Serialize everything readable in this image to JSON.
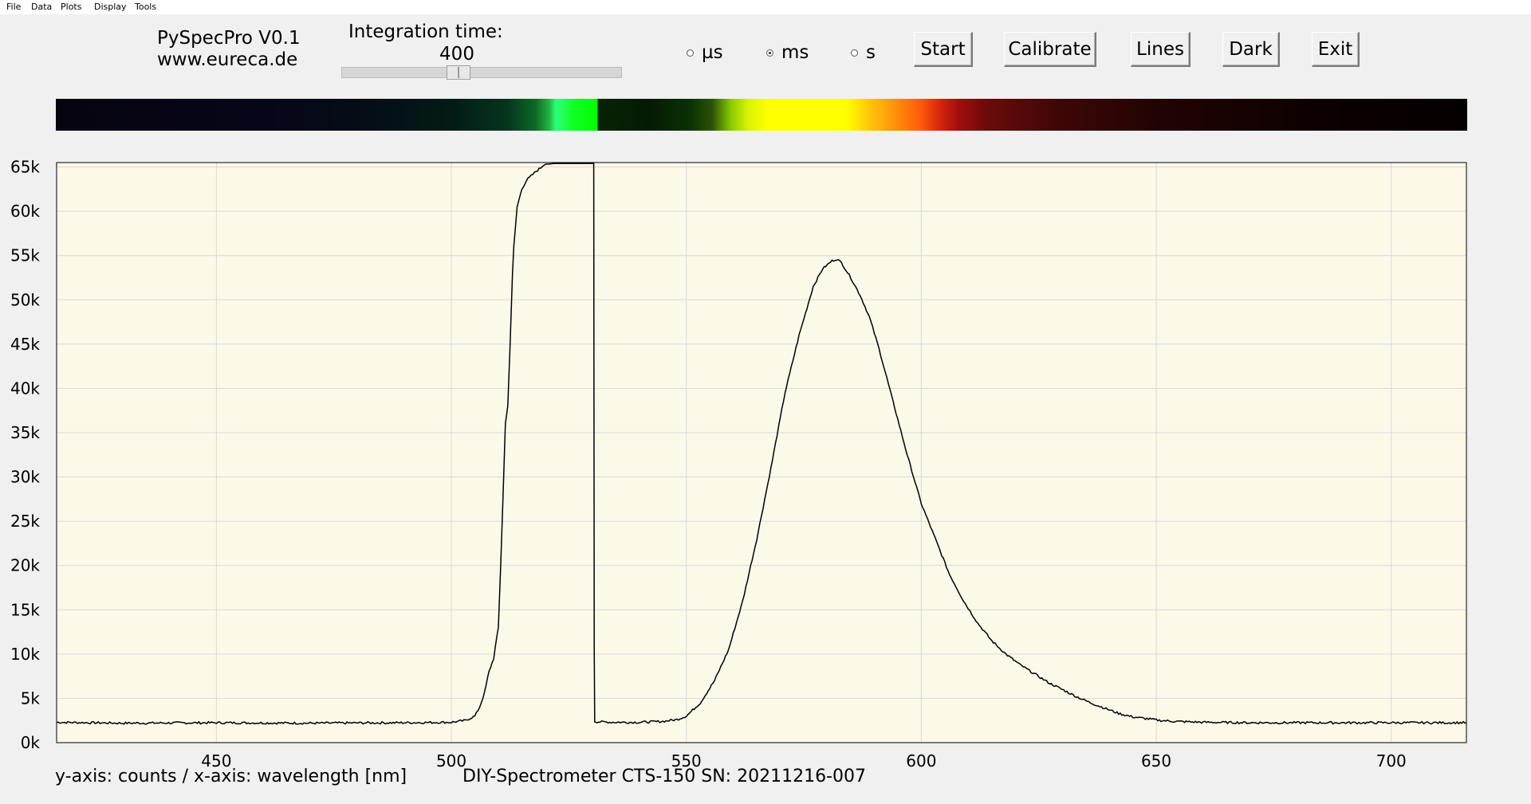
{
  "menu": {
    "items": [
      {
        "label": "File"
      },
      {
        "label": "Data"
      },
      {
        "label": "Plots"
      },
      {
        "label": "Display"
      },
      {
        "label": "Tools"
      }
    ]
  },
  "header": {
    "title": "PySpecPro V0.1",
    "url": "www.eureca.de",
    "integration_label": "Integration time:",
    "integration_value": "400",
    "integration_slider_level": 0.41
  },
  "units": {
    "options": [
      {
        "label": "µs",
        "selected": false
      },
      {
        "label": "ms",
        "selected": true
      },
      {
        "label": "s",
        "selected": false
      }
    ]
  },
  "buttons": {
    "start": "Start",
    "calibrate": "Calibrate",
    "lines": "Lines",
    "dark": "Dark",
    "exit": "Exit"
  },
  "footer": {
    "axes_text": "y-axis: counts / x-axis: wavelength [nm]",
    "device_text": "DIY-Spectrometer CTS-150  SN: 20211216-007"
  },
  "colors": {
    "plot_background": "#fdf9e9",
    "grid": "#d8d8d8",
    "trace": "#000000"
  },
  "chart_data": {
    "type": "line",
    "xlabel": "wavelength [nm]",
    "ylabel": "counts",
    "xlim": [
      416,
      716
    ],
    "ylim": [
      0,
      65500
    ],
    "x_ticks": [
      450,
      500,
      550,
      600,
      650,
      700
    ],
    "y_ticks": [
      {
        "value": 0,
        "label": "0k"
      },
      {
        "value": 5000,
        "label": "5k"
      },
      {
        "value": 10000,
        "label": "10k"
      },
      {
        "value": 15000,
        "label": "15k"
      },
      {
        "value": 20000,
        "label": "20k"
      },
      {
        "value": 25000,
        "label": "25k"
      },
      {
        "value": 30000,
        "label": "30k"
      },
      {
        "value": 35000,
        "label": "35k"
      },
      {
        "value": 40000,
        "label": "40k"
      },
      {
        "value": 45000,
        "label": "45k"
      },
      {
        "value": 50000,
        "label": "50k"
      },
      {
        "value": 55000,
        "label": "55k"
      },
      {
        "value": 60000,
        "label": "60k"
      },
      {
        "value": 65000,
        "label": "65k"
      }
    ],
    "grid": true,
    "series": [
      {
        "x": [
          416,
          430,
          450,
          470,
          490,
          500,
          503,
          505,
          506,
          507,
          508,
          509,
          510,
          510.5,
          511,
          511.5,
          512,
          512.5,
          513,
          513.3,
          514,
          515,
          516,
          518,
          520,
          522,
          524,
          525,
          528,
          530,
          530.3,
          530.4,
          530.5,
          531,
          535,
          540,
          545,
          548,
          550,
          553,
          556,
          559,
          562,
          565,
          568,
          571,
          574,
          577,
          579,
          581,
          582,
          583,
          585,
          587,
          589,
          591,
          594,
          597,
          600,
          603,
          606,
          609,
          612,
          615,
          618,
          621,
          624,
          627,
          630,
          633,
          636,
          639,
          642,
          645,
          648,
          651,
          654,
          657,
          660,
          670,
          680,
          690,
          700,
          710,
          716
        ],
        "y": [
          2300,
          2200,
          2250,
          2200,
          2250,
          2300,
          2500,
          3000,
          4000,
          5500,
          8000,
          9500,
          13000,
          20000,
          28000,
          36000,
          38000,
          45000,
          53000,
          56000,
          60500,
          62500,
          63500,
          64500,
          65300,
          65400,
          65400,
          65400,
          65400,
          65400,
          65400,
          11000,
          2400,
          2350,
          2300,
          2300,
          2400,
          2600,
          3000,
          4500,
          7000,
          10500,
          16000,
          23000,
          31000,
          39500,
          46000,
          51500,
          53500,
          54400,
          54600,
          54200,
          52500,
          50500,
          48000,
          44500,
          38500,
          32500,
          27000,
          23000,
          19000,
          16000,
          13500,
          11500,
          10000,
          8800,
          7800,
          6800,
          6000,
          5200,
          4500,
          3900,
          3300,
          2900,
          2700,
          2500,
          2400,
          2350,
          2300,
          2250,
          2250,
          2250,
          2250,
          2250,
          2250
        ]
      }
    ]
  }
}
